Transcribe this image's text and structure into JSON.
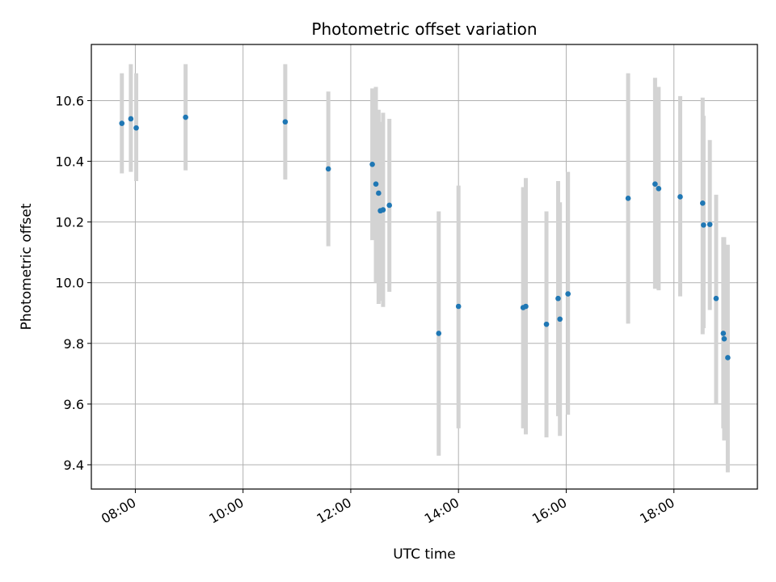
{
  "chart_data": {
    "type": "scatter",
    "title": "Photometric offset variation",
    "xlabel": "UTC time",
    "ylabel": "Photometric offset",
    "xlim": [
      "07:11",
      "19:33"
    ],
    "ylim": [
      9.32,
      10.785
    ],
    "x_ticks": [
      "08:00",
      "10:00",
      "12:00",
      "14:00",
      "16:00",
      "18:00"
    ],
    "y_ticks": [
      9.4,
      9.6,
      9.8,
      10.0,
      10.2,
      10.4,
      10.6
    ],
    "grid": true,
    "marker_color": "#1f77b4",
    "errorbar_color": "#d3d3d3",
    "points": [
      {
        "x": "07:45",
        "y": 10.525,
        "lo": 10.36,
        "hi": 10.69
      },
      {
        "x": "07:55",
        "y": 10.54,
        "lo": 10.365,
        "hi": 10.72
      },
      {
        "x": "08:01",
        "y": 10.51,
        "lo": 10.335,
        "hi": 10.69
      },
      {
        "x": "08:56",
        "y": 10.545,
        "lo": 10.37,
        "hi": 10.72
      },
      {
        "x": "10:47",
        "y": 10.53,
        "lo": 10.34,
        "hi": 10.72
      },
      {
        "x": "11:35",
        "y": 10.375,
        "lo": 10.12,
        "hi": 10.63
      },
      {
        "x": "12:24",
        "y": 10.39,
        "lo": 10.14,
        "hi": 10.64
      },
      {
        "x": "12:28",
        "y": 10.325,
        "lo": 10.0,
        "hi": 10.645
      },
      {
        "x": "12:31",
        "y": 10.295,
        "lo": 9.93,
        "hi": 10.57
      },
      {
        "x": "12:33",
        "y": 10.237,
        "lo": 9.94,
        "hi": 10.53
      },
      {
        "x": "12:36",
        "y": 10.24,
        "lo": 9.92,
        "hi": 10.56
      },
      {
        "x": "12:43",
        "y": 10.255,
        "lo": 9.97,
        "hi": 10.54
      },
      {
        "x": "13:38",
        "y": 9.833,
        "lo": 9.43,
        "hi": 10.235
      },
      {
        "x": "14:00",
        "y": 9.922,
        "lo": 9.52,
        "hi": 10.32
      },
      {
        "x": "15:12",
        "y": 9.918,
        "lo": 9.52,
        "hi": 10.315
      },
      {
        "x": "15:15",
        "y": 9.922,
        "lo": 9.5,
        "hi": 10.345
      },
      {
        "x": "15:38",
        "y": 9.863,
        "lo": 9.49,
        "hi": 10.235
      },
      {
        "x": "15:51",
        "y": 9.948,
        "lo": 9.56,
        "hi": 10.335
      },
      {
        "x": "15:53",
        "y": 9.88,
        "lo": 9.495,
        "hi": 10.265
      },
      {
        "x": "16:02",
        "y": 9.963,
        "lo": 9.565,
        "hi": 10.365
      },
      {
        "x": "17:09",
        "y": 10.278,
        "lo": 9.865,
        "hi": 10.69
      },
      {
        "x": "17:39",
        "y": 10.325,
        "lo": 9.98,
        "hi": 10.675
      },
      {
        "x": "17:43",
        "y": 10.31,
        "lo": 9.975,
        "hi": 10.645
      },
      {
        "x": "18:07",
        "y": 10.283,
        "lo": 9.955,
        "hi": 10.615
      },
      {
        "x": "18:32",
        "y": 10.262,
        "lo": 9.83,
        "hi": 10.61
      },
      {
        "x": "18:33",
        "y": 10.19,
        "lo": 9.85,
        "hi": 10.55
      },
      {
        "x": "18:40",
        "y": 10.192,
        "lo": 9.91,
        "hi": 10.47
      },
      {
        "x": "18:47",
        "y": 9.948,
        "lo": 9.6,
        "hi": 10.29
      },
      {
        "x": "18:55",
        "y": 9.833,
        "lo": 9.52,
        "hi": 10.15
      },
      {
        "x": "18:56",
        "y": 9.815,
        "lo": 9.48,
        "hi": 10.15
      },
      {
        "x": "19:00",
        "y": 9.753,
        "lo": 9.375,
        "hi": 10.125
      }
    ]
  }
}
